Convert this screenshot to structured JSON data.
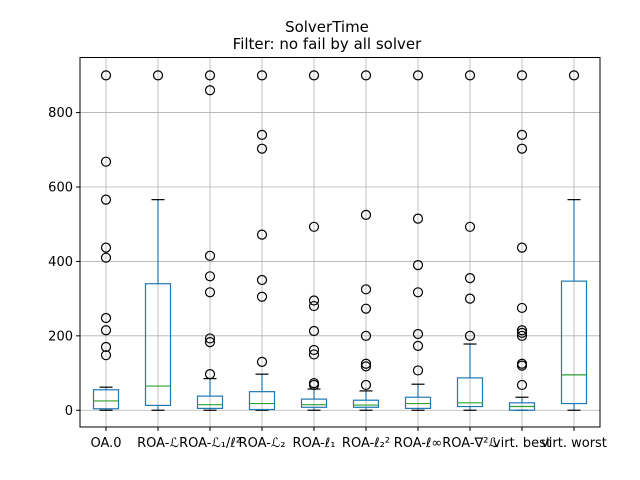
{
  "chart_data": {
    "type": "boxplot",
    "title": "SolverTime",
    "subtitle": "Filter: no fail by all solver",
    "xlabel": "",
    "ylabel": "",
    "ylim": [
      -45,
      948
    ],
    "yticks": [
      0,
      200,
      400,
      600,
      800
    ],
    "grid": true,
    "colors": {
      "box": "#1f77b4",
      "median": "#2ca02c",
      "grid": "#b0b0b0",
      "flier": "#000000"
    },
    "categories": [
      "OA.0",
      "ROA-ℒ",
      "ROA-ℒ₁/ℓ²",
      "ROA-ℒ₂",
      "ROA-ℓ₁",
      "ROA-ℓ₂²",
      "ROA-ℓ∞",
      "ROA-∇²ℒ",
      "virt. best",
      "virt. worst"
    ],
    "boxes": [
      {
        "whislo": 0,
        "q1": 4,
        "med": 25,
        "q3": 55,
        "whishi": 62,
        "fliers": [
          148,
          170,
          215,
          248,
          410,
          437,
          566,
          668,
          900
        ]
      },
      {
        "whislo": 0,
        "q1": 13,
        "med": 65,
        "q3": 340,
        "whishi": 566,
        "fliers": [
          900
        ]
      },
      {
        "whislo": 0,
        "q1": 5,
        "med": 15,
        "q3": 38,
        "whishi": 85,
        "fliers": [
          97,
          183,
          193,
          317,
          360,
          415,
          860,
          900
        ]
      },
      {
        "whislo": 0,
        "q1": 2,
        "med": 18,
        "q3": 50,
        "whishi": 97,
        "fliers": [
          130,
          305,
          350,
          472,
          703,
          740,
          900
        ]
      },
      {
        "whislo": 0,
        "q1": 8,
        "med": 15,
        "q3": 30,
        "whishi": 57,
        "fliers": [
          68,
          73,
          150,
          162,
          213,
          280,
          295,
          493,
          900
        ]
      },
      {
        "whislo": 0,
        "q1": 8,
        "med": 14,
        "q3": 27,
        "whishi": 52,
        "fliers": [
          68,
          118,
          125,
          200,
          273,
          325,
          525,
          900
        ]
      },
      {
        "whislo": 0,
        "q1": 5,
        "med": 18,
        "q3": 35,
        "whishi": 70,
        "fliers": [
          107,
          173,
          205,
          317,
          390,
          515,
          900
        ]
      },
      {
        "whislo": 0,
        "q1": 10,
        "med": 20,
        "q3": 87,
        "whishi": 178,
        "fliers": [
          200,
          300,
          355,
          493,
          900
        ]
      },
      {
        "whislo": 0,
        "q1": 0,
        "med": 10,
        "q3": 20,
        "whishi": 35,
        "fliers": [
          68,
          120,
          125,
          200,
          208,
          215,
          275,
          437,
          703,
          740,
          900
        ]
      },
      {
        "whislo": 0,
        "q1": 18,
        "med": 95,
        "q3": 347,
        "whishi": 566,
        "fliers": [
          900
        ]
      }
    ]
  }
}
